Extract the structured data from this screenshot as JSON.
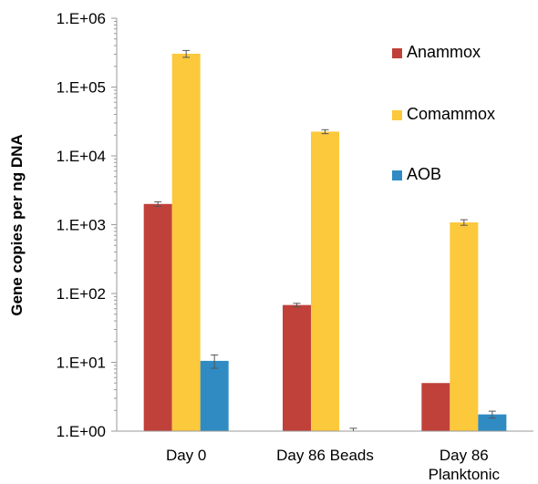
{
  "chart_data": {
    "type": "bar",
    "scale": "log",
    "title": "",
    "xlabel": "",
    "ylabel": "Gene copies per ng DNA",
    "ylim": [
      1,
      1000000
    ],
    "yticks": [
      "1.E+00",
      "1.E+01",
      "1.E+02",
      "1.E+03",
      "1.E+04",
      "1.E+05",
      "1.E+06"
    ],
    "categories": [
      {
        "lines": [
          "Day 0"
        ]
      },
      {
        "lines": [
          "Day 86 Beads"
        ]
      },
      {
        "lines": [
          "Day 86",
          "Planktonic"
        ]
      }
    ],
    "series": [
      {
        "name": "Anammox",
        "color": "#c0413a",
        "values": [
          2000,
          68,
          5
        ],
        "errors": [
          150,
          4,
          0
        ]
      },
      {
        "name": "Comammox",
        "color": "#fcc93c",
        "values": [
          305000,
          22500,
          1080
        ],
        "errors": [
          35000,
          1500,
          100
        ]
      },
      {
        "name": "AOB",
        "color": "#2f8bc2",
        "values": [
          10.5,
          1.0,
          1.75
        ],
        "errors": [
          2.3,
          0.1,
          0.2
        ]
      }
    ],
    "legend": "top-right",
    "grid": false
  }
}
